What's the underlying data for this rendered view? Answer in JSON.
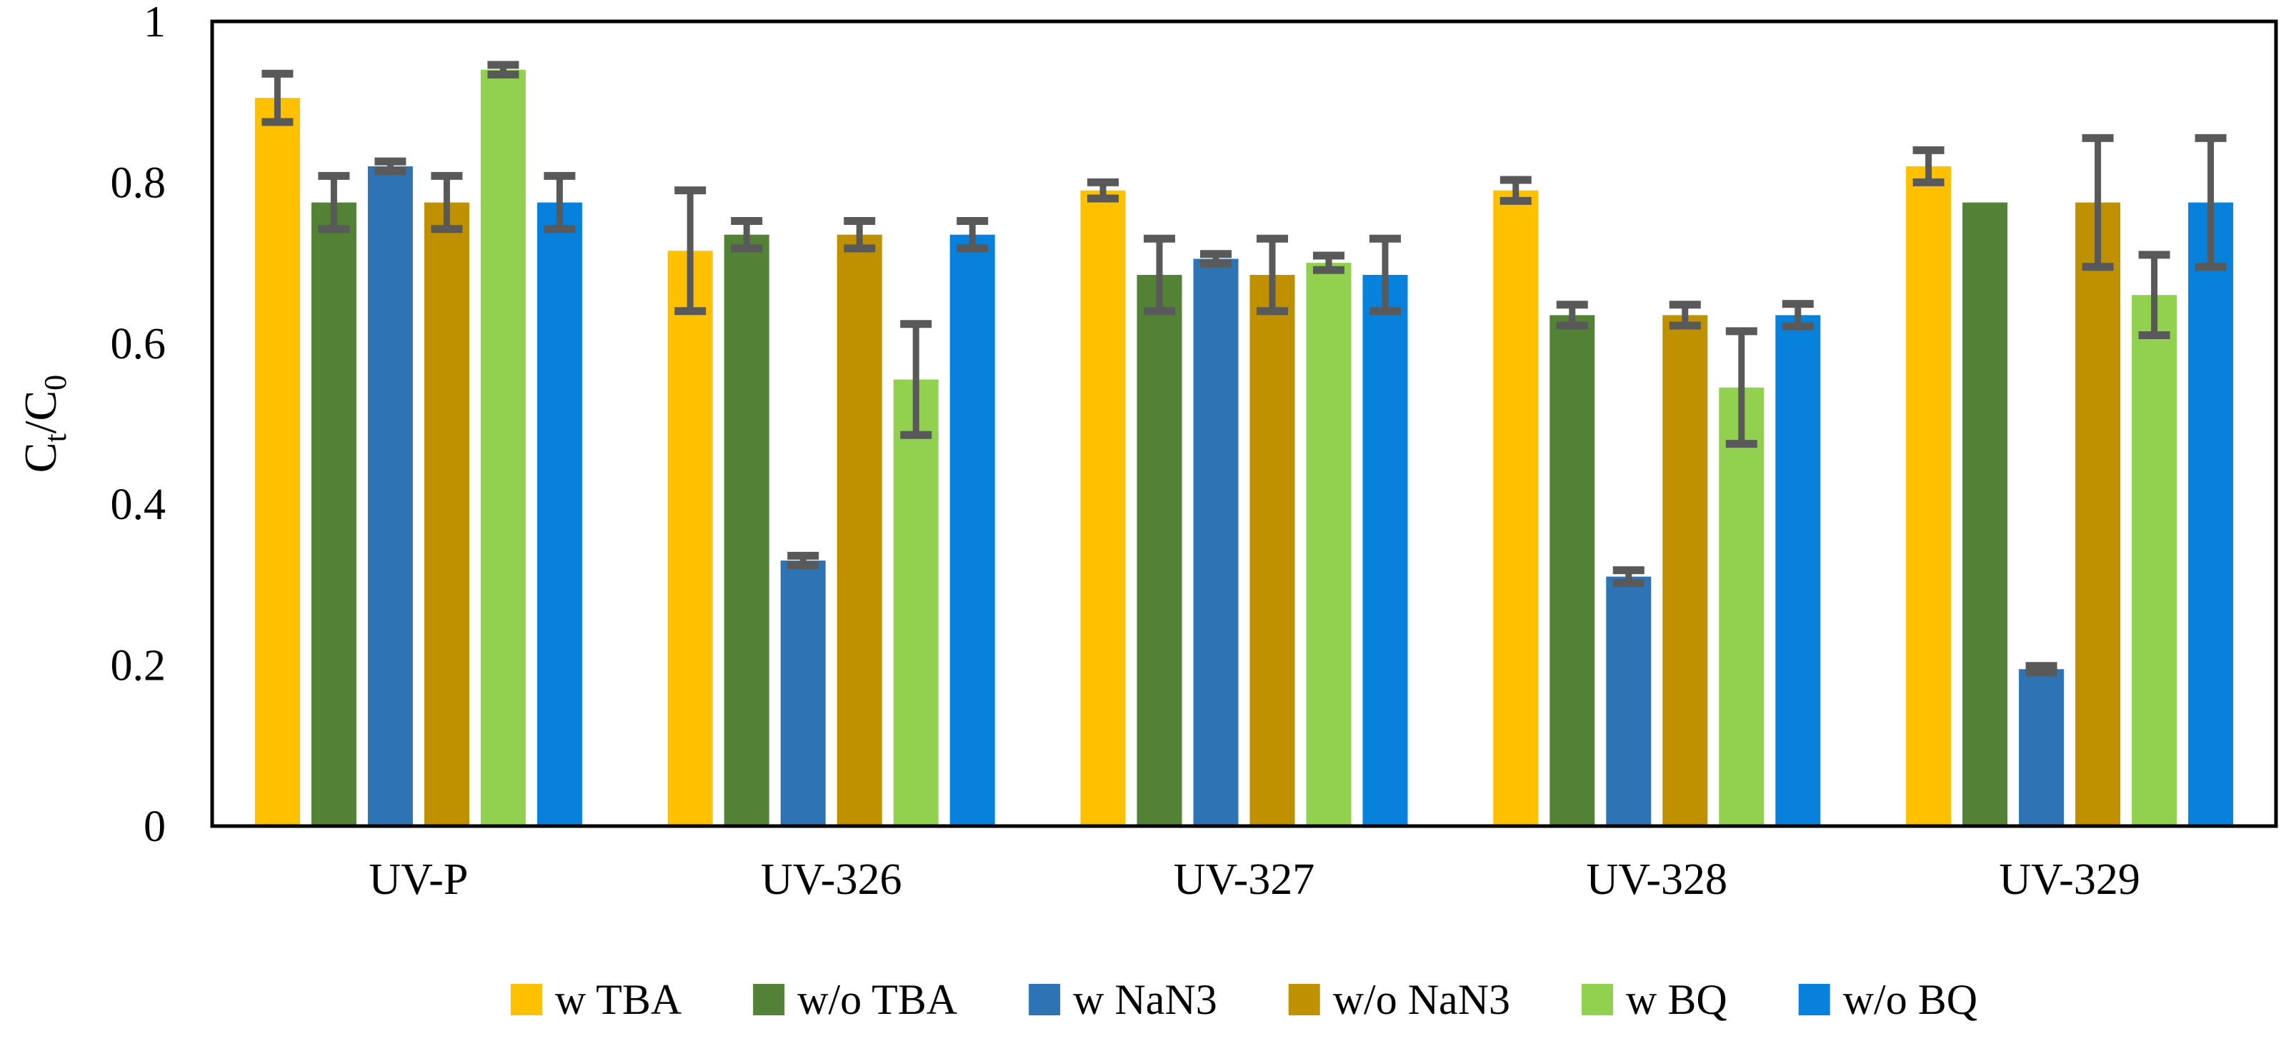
{
  "figure": {
    "kind": "grouped-bar-chart-with-error-bars",
    "background": "#ffffff",
    "frame_color": "#000000",
    "error_bar_color": "#595959"
  },
  "chart_data": {
    "type": "bar",
    "title": "",
    "xlabel": "",
    "ylabel": "Ct/C0",
    "ylabel_rich": [
      {
        "t": "C",
        "sub": false
      },
      {
        "t": "t",
        "sub": true
      },
      {
        "t": "/C",
        "sub": false
      },
      {
        "t": "0",
        "sub": true
      }
    ],
    "ylim": [
      0,
      1
    ],
    "yticks": [
      {
        "value": 1,
        "label": "1"
      },
      {
        "value": 0.8,
        "label": "0.8"
      },
      {
        "value": 0.6,
        "label": "0.6"
      },
      {
        "value": 0.4,
        "label": "0.4"
      },
      {
        "value": 0.2,
        "label": "0.2"
      },
      {
        "value": 0,
        "label": "0"
      }
    ],
    "grid": false,
    "legend_position": "bottom",
    "categories": [
      "UV-P",
      "UV-326",
      "UV-327",
      "UV-328",
      "UV-329"
    ],
    "series": [
      {
        "name": "w TBA",
        "color": "#FFC000",
        "values": [
          0.905,
          0.715,
          0.79,
          0.79,
          0.82
        ],
        "errors": [
          0.03,
          0.075,
          0.01,
          0.013,
          0.02
        ]
      },
      {
        "name": "w/o TBA",
        "color": "#538135",
        "values": [
          0.775,
          0.735,
          0.685,
          0.635,
          0.775
        ],
        "errors": [
          0.033,
          0.017,
          0.045,
          0.013,
          0
        ]
      },
      {
        "name": "w NaN3",
        "color": "#2E74B5",
        "values": [
          0.82,
          0.33,
          0.705,
          0.31,
          0.195
        ],
        "errors": [
          0.006,
          0.006,
          0.006,
          0.008,
          0.004
        ]
      },
      {
        "name": "w/o NaN3",
        "color": "#BF9000",
        "values": [
          0.775,
          0.735,
          0.685,
          0.635,
          0.775
        ],
        "errors": [
          0.033,
          0.017,
          0.045,
          0.013,
          0.08
        ]
      },
      {
        "name": "w BQ",
        "color": "#92D050",
        "values": [
          0.94,
          0.555,
          0.7,
          0.545,
          0.66
        ],
        "errors": [
          0.006,
          0.069,
          0.009,
          0.07,
          0.05
        ]
      },
      {
        "name": "w/o BQ",
        "color": "#0781DC",
        "values": [
          0.775,
          0.735,
          0.685,
          0.635,
          0.775
        ],
        "errors": [
          0.033,
          0.017,
          0.045,
          0.014,
          0.08
        ]
      }
    ]
  }
}
